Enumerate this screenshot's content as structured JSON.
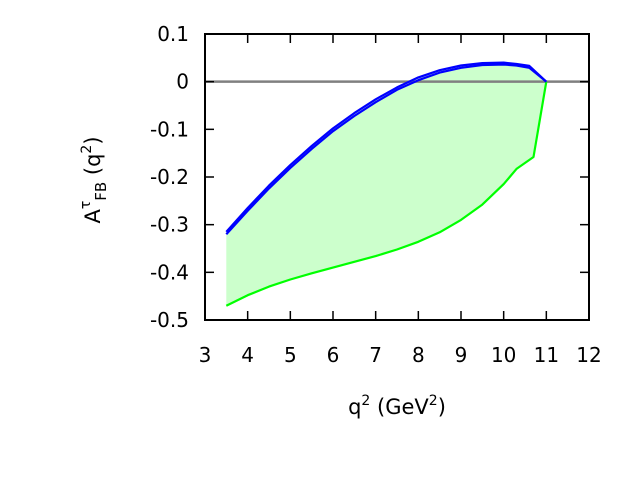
{
  "chart_data": {
    "type": "area",
    "xlabel": {
      "base": "q",
      "sup1": "2",
      "mid": " (GeV",
      "sup2": "2",
      "end": ")"
    },
    "ylabel": {
      "base": "A",
      "sup": "τ",
      "sub": "FB",
      "mid": " (q",
      "sup2": "2",
      "end": ")"
    },
    "xlim": [
      3,
      12
    ],
    "ylim": [
      -0.5,
      0.1
    ],
    "xticks": [
      "3",
      "4",
      "5",
      "6",
      "7",
      "8",
      "9",
      "10",
      "11",
      "12"
    ],
    "yticks": [
      "0.1",
      "0",
      "-0.1",
      "-0.2",
      "-0.3",
      "-0.4",
      "-0.5"
    ],
    "grid": false,
    "series": [
      {
        "color": "#0000ff",
        "x": [
          3.5,
          4.0,
          4.5,
          5.0,
          5.5,
          6.0,
          6.5,
          7.0,
          7.5,
          8.0,
          8.5,
          9.0,
          9.5,
          10.0,
          10.3,
          10.6,
          11.0
        ],
        "y": [
          -0.315,
          -0.265,
          -0.218,
          -0.175,
          -0.135,
          -0.098,
          -0.066,
          -0.037,
          -0.012,
          0.009,
          0.024,
          0.034,
          0.039,
          0.04,
          0.037,
          0.033,
          0.0
        ]
      },
      {
        "color": "#0000ff",
        "x": [
          3.5,
          4.0,
          4.5,
          5.0,
          5.5,
          6.0,
          6.5,
          7.0,
          7.5,
          8.0,
          8.5,
          9.0,
          9.5,
          10.0,
          10.3,
          10.6,
          11.0
        ],
        "y": [
          -0.32,
          -0.271,
          -0.224,
          -0.181,
          -0.141,
          -0.104,
          -0.072,
          -0.043,
          -0.017,
          0.003,
          0.019,
          0.029,
          0.035,
          0.036,
          0.034,
          0.029,
          0.0
        ]
      },
      {
        "color": "#00ff00",
        "x": [
          3.5,
          4.0,
          4.5,
          5.0,
          5.5,
          6.0,
          6.5,
          7.0,
          7.5,
          8.0,
          8.5,
          9.0,
          9.5,
          10.0,
          10.3,
          10.7,
          11.0
        ],
        "y": [
          -0.47,
          -0.448,
          -0.43,
          -0.415,
          -0.402,
          -0.39,
          -0.378,
          -0.366,
          -0.352,
          -0.336,
          -0.316,
          -0.29,
          -0.258,
          -0.215,
          -0.183,
          -0.158,
          0.0
        ]
      }
    ],
    "band": {
      "upper_series": 0,
      "lower_series": 2,
      "fill": "#ccffcc"
    },
    "reference_line": {
      "y": 0,
      "color": "#808080"
    }
  }
}
